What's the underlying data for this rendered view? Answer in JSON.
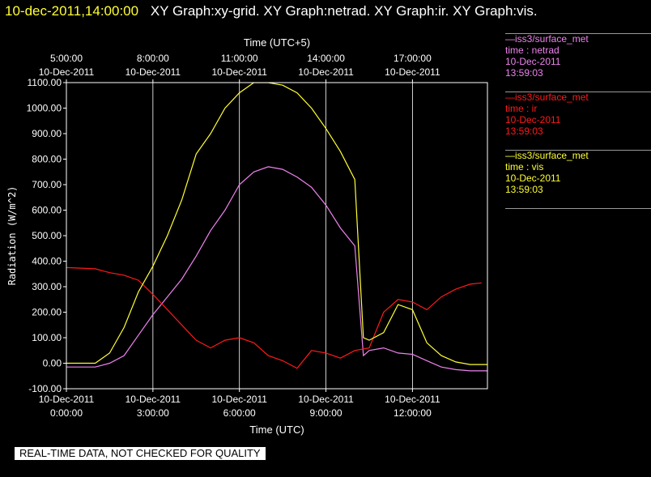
{
  "header": {
    "timestamp": "10-dec-2011,14:00:00",
    "graphs": "XY Graph:xy-grid.  XY Graph:netrad.  XY Graph:ir.  XY Graph:vis."
  },
  "legend": [
    {
      "name": "—iss3/surface_met",
      "field": "time : netrad",
      "date": "10-Dec-2011",
      "time": "13:59:03",
      "color": "#ee82ee"
    },
    {
      "name": "—iss3/surface_met",
      "field": "time : ir",
      "date": "10-Dec-2011",
      "time": "13:59:03",
      "color": "#ff1a1a"
    },
    {
      "name": "—iss3/surface_met",
      "field": "time : vis",
      "date": "10-Dec-2011",
      "time": "13:59:03",
      "color": "#ffff33"
    }
  ],
  "notice": "REAL-TIME DATA, NOT CHECKED FOR QUALITY",
  "chart_data": {
    "type": "line",
    "xlabel": "Time (UTC)",
    "x2label": "Time (UTC+5)",
    "ylabel": "Radiation (W/m^2)",
    "ylim": [
      -100,
      1100
    ],
    "xlim_hours_utc": [
      0,
      14.6
    ],
    "grid": true,
    "y_ticks": [
      "-100.00",
      "0.00",
      "100.00",
      "200.00",
      "300.00",
      "400.00",
      "500.00",
      "600.00",
      "700.00",
      "800.00",
      "900.00",
      "1000.00",
      "1100.00"
    ],
    "x_ticks": [
      {
        "date": "10-Dec-2011",
        "time": "0:00:00"
      },
      {
        "date": "10-Dec-2011",
        "time": "3:00:00"
      },
      {
        "date": "10-Dec-2011",
        "time": "6:00:00"
      },
      {
        "date": "10-Dec-2011",
        "time": "9:00:00"
      },
      {
        "date": "10-Dec-2011",
        "time": "12:00:00"
      }
    ],
    "x2_ticks": [
      {
        "time": "5:00:00",
        "date": "10-Dec-2011"
      },
      {
        "time": "8:00:00",
        "date": "10-Dec-2011"
      },
      {
        "time": "11:00:00",
        "date": "10-Dec-2011"
      },
      {
        "time": "14:00:00",
        "date": "10-Dec-2011"
      },
      {
        "time": "17:00:00",
        "date": "10-Dec-2011"
      }
    ],
    "series": [
      {
        "field": "netrad",
        "color": "#ee82ee",
        "points": [
          [
            0,
            -15
          ],
          [
            1,
            -15
          ],
          [
            1.5,
            0
          ],
          [
            2,
            30
          ],
          [
            2.5,
            110
          ],
          [
            3,
            190
          ],
          [
            3.5,
            260
          ],
          [
            4,
            330
          ],
          [
            4.5,
            420
          ],
          [
            5,
            520
          ],
          [
            5.5,
            600
          ],
          [
            6,
            700
          ],
          [
            6.5,
            750
          ],
          [
            7,
            770
          ],
          [
            7.5,
            760
          ],
          [
            8,
            730
          ],
          [
            8.5,
            690
          ],
          [
            9,
            620
          ],
          [
            9.5,
            530
          ],
          [
            10,
            460
          ],
          [
            10.3,
            30
          ],
          [
            10.5,
            50
          ],
          [
            11,
            60
          ],
          [
            11.5,
            40
          ],
          [
            12,
            35
          ],
          [
            12.5,
            10
          ],
          [
            13,
            -15
          ],
          [
            13.5,
            -25
          ],
          [
            14,
            -30
          ],
          [
            14.6,
            -30
          ]
        ]
      },
      {
        "field": "ir",
        "color": "#ff1a1a",
        "points": [
          [
            0,
            375
          ],
          [
            1,
            370
          ],
          [
            1.5,
            355
          ],
          [
            2,
            345
          ],
          [
            2.5,
            325
          ],
          [
            3,
            270
          ],
          [
            3.5,
            210
          ],
          [
            4,
            150
          ],
          [
            4.5,
            90
          ],
          [
            5,
            60
          ],
          [
            5.5,
            90
          ],
          [
            6,
            100
          ],
          [
            6.5,
            80
          ],
          [
            7,
            30
          ],
          [
            7.5,
            10
          ],
          [
            8,
            -20
          ],
          [
            8.5,
            50
          ],
          [
            9,
            40
          ],
          [
            9.5,
            20
          ],
          [
            10,
            50
          ],
          [
            10.5,
            60
          ],
          [
            11,
            200
          ],
          [
            11.5,
            250
          ],
          [
            12,
            240
          ],
          [
            12.5,
            210
          ],
          [
            13,
            260
          ],
          [
            13.5,
            290
          ],
          [
            14,
            310
          ],
          [
            14.4,
            315
          ]
        ]
      },
      {
        "field": "vis",
        "color": "#ffff33",
        "points": [
          [
            0,
            0
          ],
          [
            1,
            0
          ],
          [
            1.5,
            40
          ],
          [
            2,
            140
          ],
          [
            2.5,
            280
          ],
          [
            3,
            380
          ],
          [
            3.5,
            500
          ],
          [
            4,
            640
          ],
          [
            4.5,
            820
          ],
          [
            5,
            900
          ],
          [
            5.5,
            1000
          ],
          [
            6,
            1060
          ],
          [
            6.5,
            1100
          ],
          [
            7,
            1100
          ],
          [
            7.5,
            1090
          ],
          [
            8,
            1060
          ],
          [
            8.5,
            1000
          ],
          [
            9,
            920
          ],
          [
            9.5,
            830
          ],
          [
            10,
            720
          ],
          [
            10.3,
            100
          ],
          [
            10.5,
            90
          ],
          [
            11,
            120
          ],
          [
            11.5,
            230
          ],
          [
            12,
            210
          ],
          [
            12.5,
            80
          ],
          [
            13,
            30
          ],
          [
            13.5,
            5
          ],
          [
            14,
            -5
          ],
          [
            14.6,
            -5
          ]
        ]
      }
    ]
  }
}
